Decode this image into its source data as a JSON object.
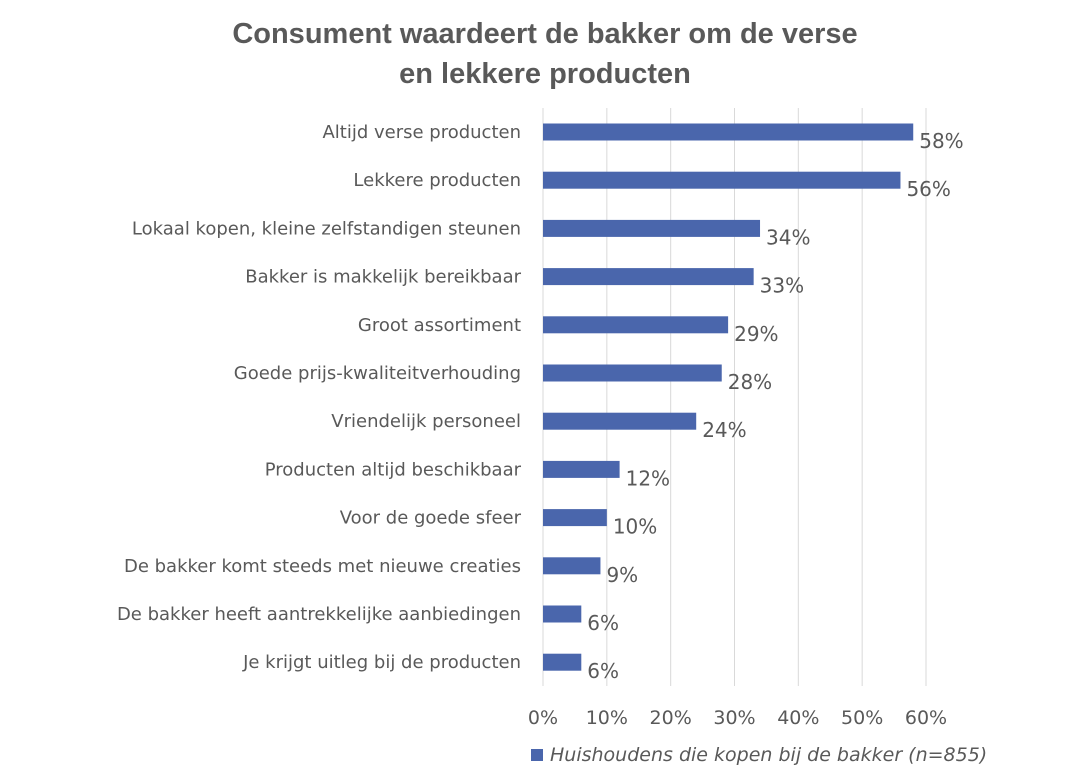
{
  "chart_data": {
    "type": "bar",
    "orientation": "horizontal",
    "title_lines": [
      "Consument waardeert de bakker om de verse",
      "en lekkere producten"
    ],
    "categories": [
      "Altijd verse producten",
      "Lekkere producten",
      "Lokaal kopen, kleine zelfstandigen steunen",
      "Bakker is makkelijk bereikbaar",
      "Groot assortiment",
      "Goede prijs-kwaliteitverhouding",
      "Vriendelijk personeel",
      "Producten altijd beschikbaar",
      "Voor de goede sfeer",
      "De bakker komt steeds met nieuwe creaties",
      "De bakker heeft aantrekkelijke aanbiedingen",
      "Je krijgt uitleg bij de producten"
    ],
    "series": [
      {
        "name": "Huishoudens die kopen bij de bakker (n=855)",
        "values": [
          58,
          56,
          34,
          33,
          29,
          28,
          24,
          12,
          10,
          9,
          6,
          6
        ],
        "labels": [
          "58%",
          "56%",
          "34%",
          "33%",
          "29%",
          "28%",
          "24%",
          "12%",
          "10%",
          "9%",
          "6%",
          "6%"
        ]
      }
    ],
    "xlim": [
      0,
      60
    ],
    "xticks": [
      0,
      10,
      20,
      30,
      40,
      50,
      60
    ],
    "xtick_labels": [
      "0%",
      "10%",
      "20%",
      "30%",
      "40%",
      "50%",
      "60%"
    ],
    "grid": "vertical",
    "legend_placement": "bottom",
    "colors": {
      "bar": "#4a66ac",
      "text": "#595959",
      "grid": "#d9d9d9"
    }
  }
}
